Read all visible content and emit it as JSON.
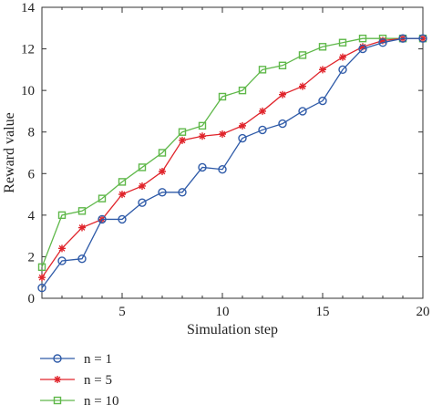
{
  "chart_data": {
    "type": "line",
    "xlabel": "Simulation step",
    "ylabel": "Reward value",
    "xlim": [
      1,
      20
    ],
    "ylim": [
      0,
      14
    ],
    "xticks": [
      5,
      10,
      15,
      20
    ],
    "yticks": [
      0,
      2,
      4,
      6,
      8,
      10,
      12,
      14
    ],
    "grid": false,
    "legend_position": "bottom-left, below plot",
    "x": [
      1,
      2,
      3,
      4,
      5,
      6,
      7,
      8,
      9,
      10,
      11,
      12,
      13,
      14,
      15,
      16,
      17,
      18,
      19,
      20
    ],
    "series": [
      {
        "name": "n = 1",
        "color": "#2e5aa8",
        "marker": "circle",
        "values": [
          0.5,
          1.8,
          1.9,
          3.8,
          3.8,
          4.6,
          5.1,
          5.1,
          6.3,
          6.2,
          7.7,
          8.1,
          8.4,
          9.0,
          9.5,
          11.0,
          12.0,
          12.3,
          12.5,
          12.5
        ]
      },
      {
        "name": "n = 5",
        "color": "#e0242b",
        "marker": "star",
        "values": [
          1.0,
          2.4,
          3.4,
          3.8,
          5.0,
          5.4,
          6.1,
          7.6,
          7.8,
          7.9,
          8.3,
          9.0,
          9.8,
          10.2,
          11.0,
          11.6,
          12.1,
          12.4,
          12.5,
          12.5
        ]
      },
      {
        "name": "n = 10",
        "color": "#5fb84a",
        "marker": "square",
        "values": [
          1.5,
          4.0,
          4.2,
          4.8,
          5.6,
          6.3,
          7.0,
          8.0,
          8.3,
          9.7,
          10.0,
          11.0,
          11.2,
          11.7,
          12.1,
          12.3,
          12.5,
          12.5,
          12.5,
          12.5
        ]
      }
    ]
  }
}
